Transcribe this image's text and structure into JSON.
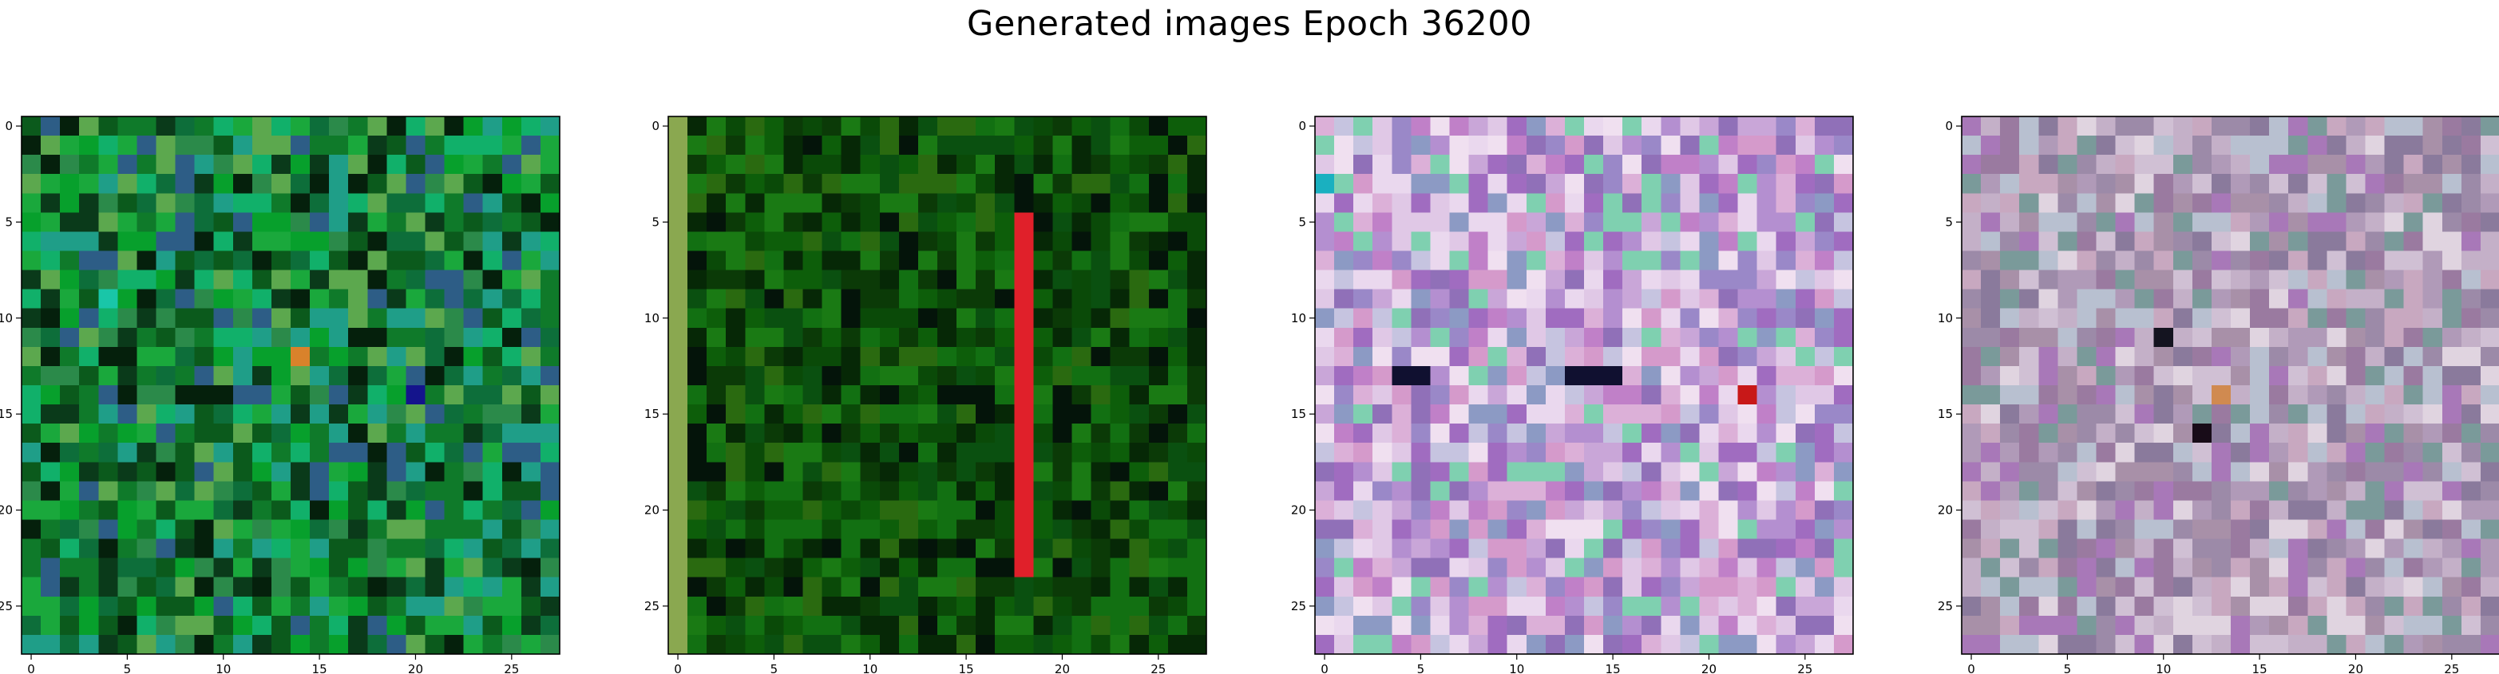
{
  "figure": {
    "title": "Generated images Epoch 36200"
  },
  "chart_data": [
    {
      "type": "heatmap",
      "title": "",
      "xlabel": "",
      "ylabel": "",
      "grid_size": [
        28,
        28
      ],
      "xlim": [
        -0.5,
        27.5
      ],
      "ylim": [
        27.5,
        -0.5
      ],
      "x_ticks": [
        0,
        5,
        10,
        15,
        20,
        25
      ],
      "y_ticks": [
        0,
        5,
        10,
        15,
        20,
        25
      ],
      "grid": false,
      "palette": "green",
      "palette_colors": [
        "#0b5a1c",
        "#0f7a2a",
        "#07a02c",
        "#1aa83c",
        "#0d6e3a",
        "#2b8a4a",
        "#11b06a",
        "#1f9e88",
        "#2d5d86",
        "#0a3a1a",
        "#05200c",
        "#5ca84e"
      ],
      "notable_features": [
        {
          "description": "orange pixel",
          "row": 12,
          "col": 14,
          "color": "#d9822b"
        },
        {
          "description": "dark blue pixel",
          "row": 14,
          "col": 20,
          "color": "#14148c"
        },
        {
          "description": "bright cyan pixel",
          "row": 9,
          "col": 4,
          "color": "#19c6a8"
        }
      ]
    },
    {
      "type": "heatmap",
      "title": "",
      "xlabel": "",
      "ylabel": "",
      "grid_size": [
        28,
        28
      ],
      "xlim": [
        -0.5,
        27.5
      ],
      "ylim": [
        27.5,
        -0.5
      ],
      "x_ticks": [
        0,
        5,
        10,
        15,
        20,
        25
      ],
      "y_ticks": [
        0,
        5,
        10,
        15,
        20,
        25
      ],
      "grid": false,
      "palette": "dark-green",
      "palette_colors": [
        "#0a4a08",
        "#0d5e0a",
        "#127012",
        "#0b3a07",
        "#1a7a14",
        "#062806",
        "#04140a",
        "#2a6a10",
        "#0a5010"
      ],
      "notable_features": [
        {
          "description": "red vertical stripe",
          "col": 18,
          "row_start": 5,
          "row_end": 23,
          "color": "#e0202a"
        },
        {
          "description": "olive left border column",
          "col": 0,
          "color": "#8aa850"
        }
      ]
    },
    {
      "type": "heatmap",
      "title": "",
      "xlabel": "",
      "ylabel": "",
      "grid_size": [
        28,
        28
      ],
      "xlim": [
        -0.5,
        27.5
      ],
      "ylim": [
        27.5,
        -0.5
      ],
      "x_ticks": [
        0,
        5,
        10,
        15,
        20,
        25
      ],
      "y_ticks": [
        0,
        5,
        10,
        15,
        20,
        25
      ],
      "grid": false,
      "palette": "pastel-magenta",
      "palette_colors": [
        "#c9a6d8",
        "#e0c8e6",
        "#b48fd0",
        "#9a88c8",
        "#d59acb",
        "#c6c4e0",
        "#ead8ee",
        "#a06cc0",
        "#8c9ac4",
        "#c080c8",
        "#dcb0d8",
        "#7fd0b0",
        "#f0e0f0",
        "#9070b8"
      ],
      "notable_features": [
        {
          "description": "dark pixel row",
          "row": 13,
          "cols": [
            4,
            5,
            13,
            14,
            15
          ],
          "color": "#101030"
        },
        {
          "description": "red pixel",
          "row": 14,
          "col": 22,
          "color": "#c81818"
        },
        {
          "description": "teal pixel",
          "row": 3,
          "col": 0,
          "color": "#1ab0c0"
        }
      ]
    },
    {
      "type": "heatmap",
      "title": "",
      "xlabel": "",
      "ylabel": "",
      "grid_size": [
        28,
        28
      ],
      "xlim": [
        -0.5,
        27.5
      ],
      "ylim": [
        27.5,
        -0.5
      ],
      "x_ticks": [
        0,
        5,
        10,
        15,
        20,
        25
      ],
      "y_ticks": [
        0,
        5,
        10,
        15,
        20,
        25
      ],
      "grid": false,
      "palette": "muted-mauve",
      "palette_colors": [
        "#b09ab8",
        "#c4b0c8",
        "#9c8aa8",
        "#d0c0d4",
        "#a890a8",
        "#8a7a9c",
        "#c8a8c0",
        "#b8c0d0",
        "#e0d4e0",
        "#9a7aa0",
        "#7a9a9a",
        "#a878b8"
      ],
      "notable_features": [
        {
          "description": "dark pixel",
          "row": 11,
          "col": 10,
          "color": "#141420"
        },
        {
          "description": "dark pixel",
          "row": 16,
          "col": 12,
          "color": "#180c18"
        },
        {
          "description": "orange-tan pixel",
          "row": 14,
          "col": 13,
          "color": "#d08a50"
        }
      ]
    }
  ]
}
